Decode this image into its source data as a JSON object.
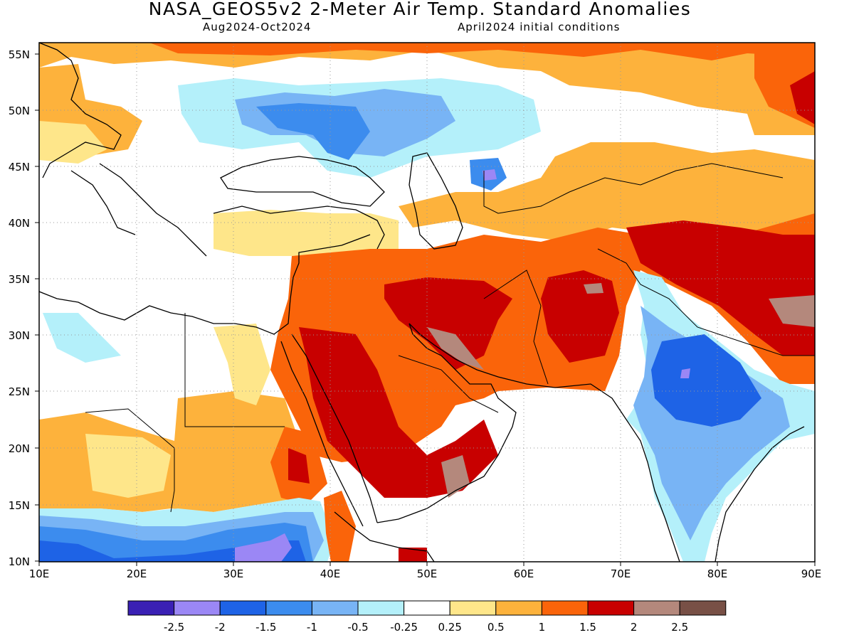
{
  "header": {
    "title": "NASA_GEOS5v2 2-Meter Air Temp. Standard Anomalies",
    "period": "Aug2024-Oct2024",
    "init": "April2024 initial conditions"
  },
  "map": {
    "lat_labels": [
      "55N",
      "50N",
      "45N",
      "40N",
      "35N",
      "30N",
      "25N",
      "20N",
      "15N",
      "10N"
    ],
    "lon_labels": [
      "10E",
      "20E",
      "30E",
      "40E",
      "50E",
      "60E",
      "70E",
      "80E",
      "90E"
    ]
  },
  "legend": {
    "colors": [
      "#3a20b4",
      "#9b87f5",
      "#1e63e6",
      "#3c8cee",
      "#78b4f5",
      "#b4f0fa",
      "#ffffff",
      "#fee68a",
      "#fdb23c",
      "#fa640a",
      "#c80000",
      "#b4887c",
      "#785046"
    ],
    "labels": [
      "-2.5",
      "-2",
      "-1.5",
      "-1",
      "-0.5",
      "-0.25",
      "0.25",
      "0.5",
      "1",
      "1.5",
      "2",
      "2.5"
    ]
  }
}
